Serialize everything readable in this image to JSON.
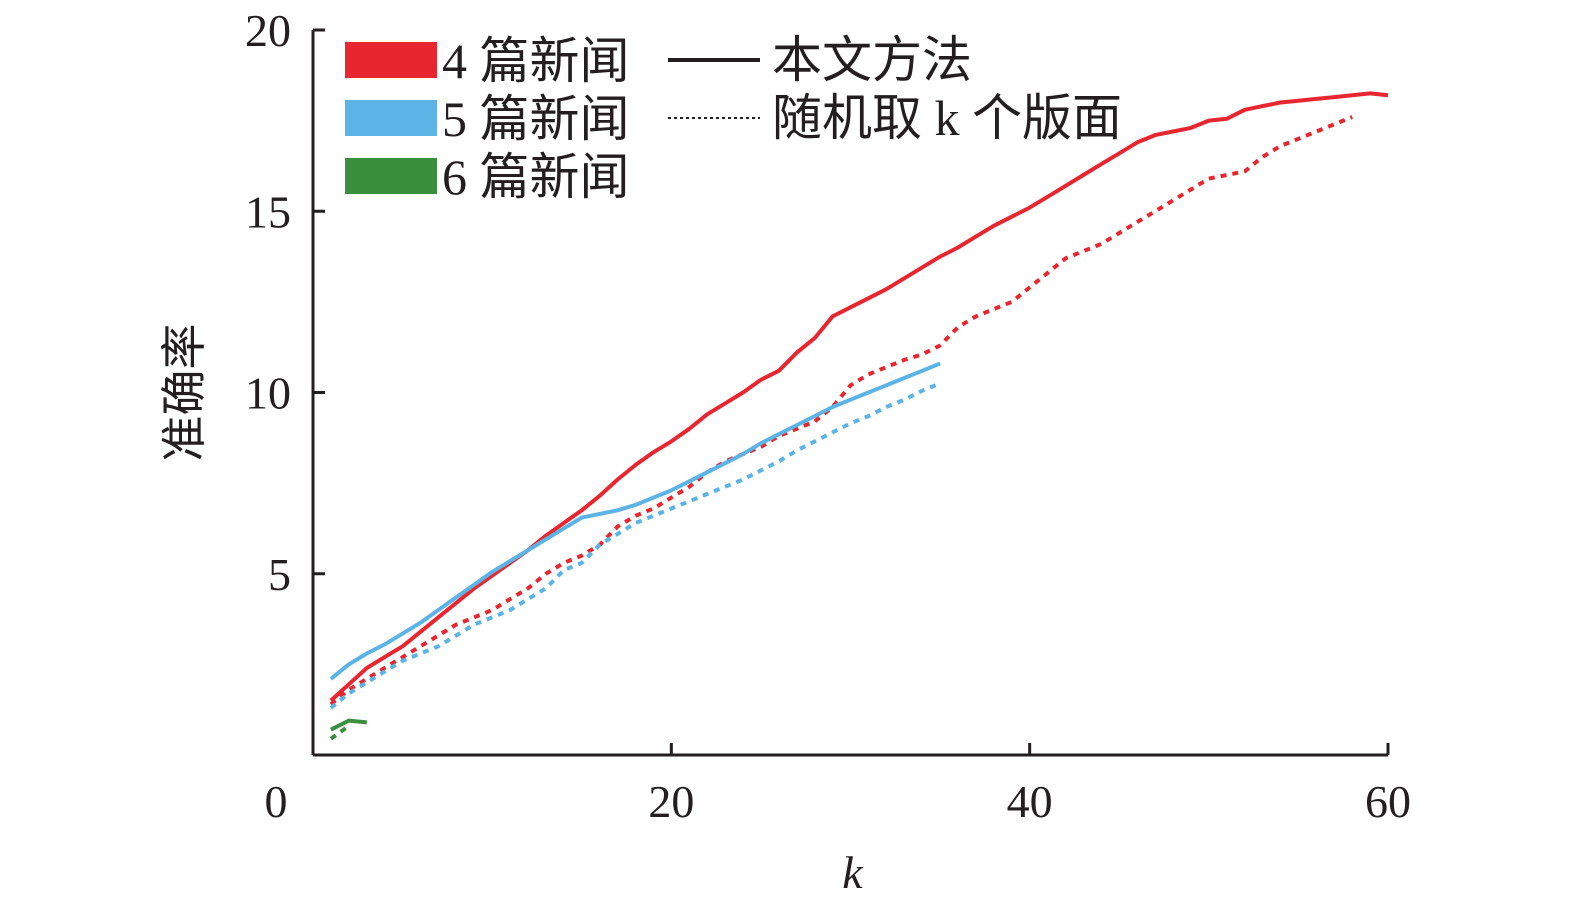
{
  "chart_data": {
    "type": "line",
    "title": "",
    "xlabel": "k",
    "ylabel": "准确率",
    "xlim": [
      0,
      60
    ],
    "ylim": [
      0,
      20
    ],
    "xticks": [
      0,
      20,
      40,
      60
    ],
    "yticks": [
      5,
      10,
      15,
      20
    ],
    "grid": false,
    "legend_position": "top-left",
    "legend": {
      "colors": [
        {
          "label": "4 篇新闻",
          "color": "#e8262f"
        },
        {
          "label": "5 篇新闻",
          "color": "#5bb4e5"
        },
        {
          "label": "6 篇新闻",
          "color": "#3a8f3d"
        }
      ],
      "styles": [
        {
          "label": "本文方法",
          "style": "solid"
        },
        {
          "label": "随机取 k 个版面",
          "style": "dotted"
        }
      ]
    },
    "series": [
      {
        "news": "4 篇新闻",
        "method": "本文方法",
        "color": "#e8262f",
        "style": "solid",
        "x": [
          1,
          2,
          3,
          4,
          5,
          6,
          7,
          8,
          9,
          10,
          11,
          12,
          13,
          14,
          15,
          16,
          17,
          18,
          19,
          20,
          21,
          22,
          23,
          24,
          25,
          26,
          27,
          28,
          29,
          30,
          31,
          32,
          33,
          34,
          35,
          36,
          37,
          38,
          39,
          40,
          41,
          42,
          43,
          44,
          45,
          46,
          47,
          48,
          49,
          50,
          51,
          52,
          53,
          54,
          55,
          56,
          57,
          58,
          59,
          60
        ],
        "y": [
          1.5,
          1.95,
          2.4,
          2.7,
          3.0,
          3.4,
          3.8,
          4.2,
          4.6,
          4.95,
          5.3,
          5.65,
          6.05,
          6.4,
          6.75,
          7.15,
          7.6,
          8.0,
          8.35,
          8.65,
          9.0,
          9.4,
          9.7,
          10.0,
          10.35,
          10.6,
          11.1,
          11.5,
          12.1,
          12.35,
          12.6,
          12.85,
          13.15,
          13.45,
          13.75,
          14.0,
          14.3,
          14.6,
          14.85,
          15.1,
          15.4,
          15.7,
          16.0,
          16.3,
          16.6,
          16.9,
          17.1,
          17.2,
          17.3,
          17.5,
          17.55,
          17.8,
          17.9,
          18.0,
          18.05,
          18.1,
          18.15,
          18.2,
          18.25,
          18.2
        ]
      },
      {
        "news": "4 篇新闻",
        "method": "随机取 k 个版面",
        "color": "#e8262f",
        "style": "dotted",
        "x": [
          1,
          2,
          3,
          4,
          5,
          6,
          7,
          8,
          9,
          10,
          11,
          12,
          13,
          14,
          15,
          16,
          17,
          18,
          19,
          20,
          21,
          22,
          23,
          24,
          25,
          26,
          27,
          28,
          29,
          30,
          31,
          32,
          33,
          34,
          35,
          36,
          37,
          38,
          39,
          40,
          41,
          42,
          43,
          44,
          45,
          46,
          47,
          48,
          49,
          50,
          51,
          52,
          53,
          54,
          55,
          56,
          57,
          58
        ],
        "y": [
          1.4,
          1.8,
          2.1,
          2.4,
          2.7,
          3.0,
          3.3,
          3.6,
          3.8,
          4.0,
          4.3,
          4.6,
          5.0,
          5.3,
          5.5,
          5.8,
          6.3,
          6.6,
          6.8,
          7.1,
          7.4,
          7.8,
          8.1,
          8.3,
          8.5,
          8.8,
          9.0,
          9.2,
          9.6,
          10.2,
          10.5,
          10.7,
          10.9,
          11.05,
          11.3,
          11.8,
          12.1,
          12.3,
          12.5,
          12.9,
          13.3,
          13.7,
          13.9,
          14.1,
          14.4,
          14.7,
          15.0,
          15.3,
          15.6,
          15.9,
          16.0,
          16.1,
          16.5,
          16.8,
          17.0,
          17.2,
          17.4,
          17.6
        ]
      },
      {
        "news": "5 篇新闻",
        "method": "本文方法",
        "color": "#5bb4e5",
        "style": "solid",
        "x": [
          1,
          2,
          3,
          4,
          5,
          6,
          7,
          8,
          9,
          10,
          11,
          12,
          13,
          14,
          15,
          16,
          17,
          18,
          19,
          20,
          21,
          22,
          23,
          24,
          25,
          26,
          27,
          28,
          29,
          30,
          31,
          32,
          33,
          34,
          35
        ],
        "y": [
          2.1,
          2.5,
          2.8,
          3.05,
          3.35,
          3.65,
          4.0,
          4.35,
          4.7,
          5.05,
          5.35,
          5.65,
          5.95,
          6.25,
          6.55,
          6.65,
          6.75,
          6.9,
          7.1,
          7.3,
          7.55,
          7.8,
          8.05,
          8.3,
          8.6,
          8.85,
          9.1,
          9.35,
          9.6,
          9.8,
          10.0,
          10.2,
          10.4,
          10.6,
          10.8
        ]
      },
      {
        "news": "5 篇新闻",
        "method": "随机取 k 个版面",
        "color": "#5bb4e5",
        "style": "dotted",
        "x": [
          1,
          2,
          3,
          4,
          5,
          6,
          7,
          8,
          9,
          10,
          11,
          12,
          13,
          14,
          15,
          16,
          17,
          18,
          19,
          20,
          21,
          22,
          23,
          24,
          25,
          26,
          27,
          28,
          29,
          30,
          31,
          32,
          33,
          34,
          35
        ],
        "y": [
          1.3,
          1.7,
          2.0,
          2.3,
          2.6,
          2.8,
          3.0,
          3.3,
          3.6,
          3.8,
          4.0,
          4.3,
          4.6,
          5.1,
          5.3,
          5.8,
          6.1,
          6.4,
          6.6,
          6.8,
          7.0,
          7.2,
          7.4,
          7.6,
          7.85,
          8.1,
          8.4,
          8.65,
          8.9,
          9.15,
          9.35,
          9.6,
          9.8,
          10.05,
          10.25
        ]
      },
      {
        "news": "6 篇新闻",
        "method": "本文方法",
        "color": "#3a8f3d",
        "style": "solid",
        "x": [
          1,
          2,
          3
        ],
        "y": [
          0.7,
          0.95,
          0.9
        ]
      },
      {
        "news": "6 篇新闻",
        "method": "随机取 k 个版面",
        "color": "#3a8f3d",
        "style": "dotted",
        "x": [
          1,
          2
        ],
        "y": [
          0.45,
          0.8
        ]
      }
    ]
  }
}
